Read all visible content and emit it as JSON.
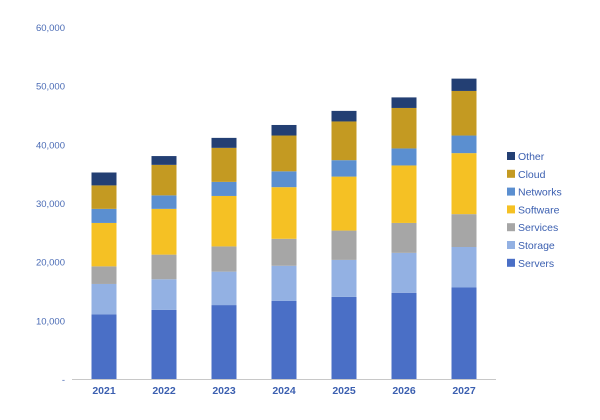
{
  "chart_data": {
    "type": "bar",
    "stacked": true,
    "categories": [
      "2021",
      "2022",
      "2023",
      "2024",
      "2025",
      "2026",
      "2027"
    ],
    "ylim": [
      0,
      60000
    ],
    "yticks": [
      0,
      10000,
      20000,
      30000,
      40000,
      50000,
      60000
    ],
    "ytick_labels": [
      "-",
      "10,000",
      "20,000",
      "30,000",
      "40,000",
      "50,000",
      "60,000"
    ],
    "legend_position": "right",
    "grid": false,
    "series": [
      {
        "name": "Servers",
        "color": "#4a6fc6",
        "values": [
          11000,
          11800,
          12600,
          13300,
          14000,
          14700,
          15600
        ]
      },
      {
        "name": "Storage",
        "color": "#93b1e3",
        "values": [
          5200,
          5200,
          5700,
          6000,
          6300,
          6800,
          6900
        ]
      },
      {
        "name": "Services",
        "color": "#a6a6a6",
        "values": [
          3000,
          4200,
          4300,
          4600,
          5000,
          5100,
          5600
        ]
      },
      {
        "name": "Software",
        "color": "#f5c124",
        "values": [
          7400,
          7800,
          8600,
          8800,
          9200,
          9800,
          10400
        ]
      },
      {
        "name": "Networks",
        "color": "#5b8fd0",
        "values": [
          2400,
          2300,
          2400,
          2700,
          2800,
          2900,
          3000
        ]
      },
      {
        "name": "Cloud",
        "color": "#c49a22",
        "values": [
          4000,
          5200,
          5800,
          6100,
          6600,
          6900,
          7600
        ]
      },
      {
        "name": "Other",
        "color": "#233f73",
        "values": [
          2200,
          1500,
          1700,
          1800,
          1800,
          1800,
          2100
        ]
      }
    ]
  }
}
